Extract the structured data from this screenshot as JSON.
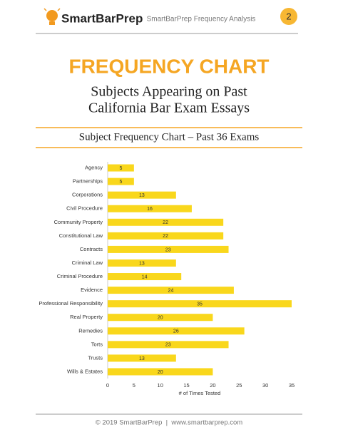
{
  "header": {
    "brand": "SmartBarPrep",
    "center_text": "SmartBarPrep Frequency Analysis",
    "page_number": "2"
  },
  "title": "FREQUENCY CHART",
  "subtitle_lines": [
    "Subjects Appearing on Past",
    "California Bar Exam Essays"
  ],
  "footer": "© 2019 SmartBarPrep  |  www.smartbarprep.com",
  "chart_data": {
    "type": "bar",
    "orientation": "horizontal",
    "title": "Subject Frequency Chart – Past 36 Exams",
    "x_label": "# of Times Tested",
    "categories": [
      "Agency",
      "Partnerships",
      "Corporations",
      "Civil Procedure",
      "Community Property",
      "Constitutional Law",
      "Contracts",
      "Criminal Law",
      "Criminal Procedure",
      "Evidence",
      "Professional Responsibility",
      "Real Property",
      "Remedies",
      "Torts",
      "Trusts",
      "Wills & Estates"
    ],
    "values": [
      5,
      5,
      13,
      16,
      22,
      22,
      23,
      13,
      14,
      24,
      35,
      20,
      26,
      23,
      13,
      20
    ],
    "color": "#f9d71c",
    "xlim": [
      0,
      35
    ],
    "xticks": [
      0,
      5,
      10,
      15,
      20,
      25,
      30,
      35
    ],
    "grid": false
  }
}
